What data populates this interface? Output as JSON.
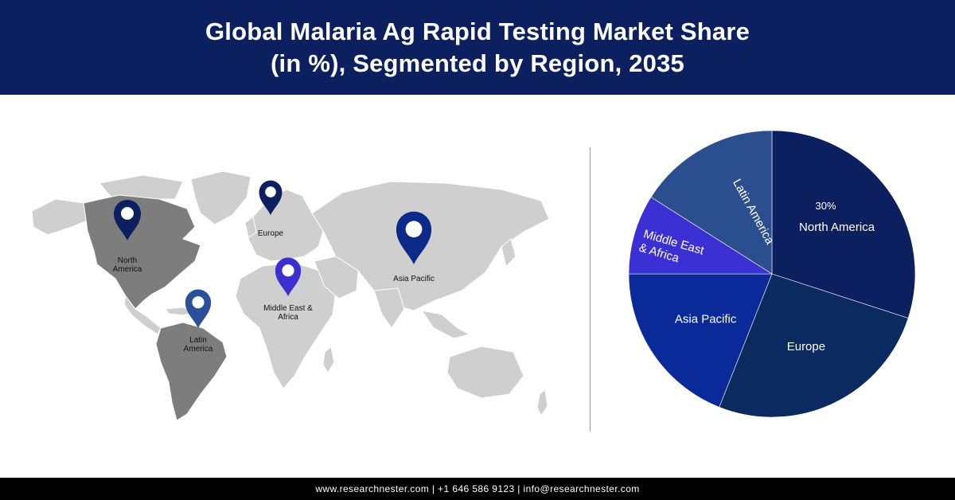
{
  "header": {
    "title_line1": "Global Malaria Ag Rapid Testing Market Share",
    "title_line2": "(in %), Segmented by Region, 2035"
  },
  "map": {
    "land_color": "#cfcfcf",
    "highlight_color": "#7d7d7d",
    "pins": [
      {
        "name": "north-america",
        "lines": [
          "North",
          "America"
        ],
        "color": "#0c1f5e"
      },
      {
        "name": "europe",
        "lines": [
          "Europe"
        ],
        "color": "#0c1f5e"
      },
      {
        "name": "asia-pacific",
        "lines": [
          "Asia Pacific"
        ],
        "color": "#0c2a8a"
      },
      {
        "name": "middle-east-africa",
        "lines": [
          "Middle East &",
          "Africa"
        ],
        "color": "#3a2fd0"
      },
      {
        "name": "latin-america",
        "lines": [
          "Latin",
          "America"
        ],
        "color": "#2b4f9a"
      }
    ]
  },
  "chart_data": {
    "type": "pie",
    "title": "Global Malaria Ag Rapid Testing Market Share (in %), Segmented by Region, 2035",
    "slices": [
      {
        "name": "North America",
        "value": 30,
        "value_label": "30%",
        "color": "#0c1f5e"
      },
      {
        "name": "Europe",
        "value": 26,
        "value_label": "",
        "color": "#0b2a60"
      },
      {
        "name": "Asia Pacific",
        "value": 19,
        "value_label": "",
        "color": "#0b2a9a"
      },
      {
        "name": "Middle East & Africa",
        "value": 9,
        "value_label": "",
        "color": "#3a30d4"
      },
      {
        "name": "Latin America",
        "value": 16,
        "value_label": "",
        "color": "#2b4f8e"
      }
    ]
  },
  "footer": {
    "text": "www.researchnester.com | +1 646 586 9123 | info@researchnester.com"
  }
}
